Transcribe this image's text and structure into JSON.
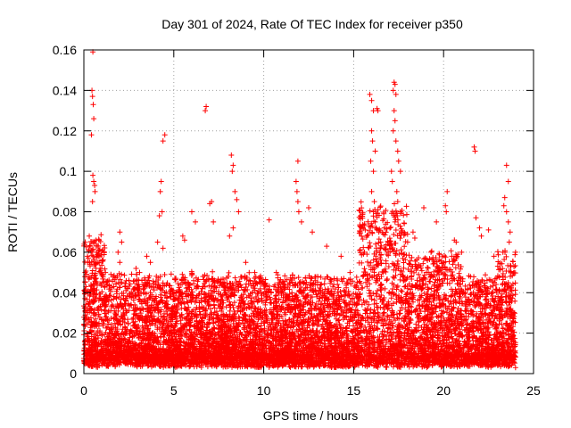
{
  "chart_data": {
    "type": "scatter",
    "title": "Day 301 of 2024, Rate Of TEC Index for receiver p350",
    "xlabel": "GPS time / hours",
    "ylabel": "ROTI / TECUs",
    "xlim": [
      0,
      25
    ],
    "ylim": [
      0,
      0.16
    ],
    "xticks": [
      0,
      5,
      10,
      15,
      20,
      25
    ],
    "xtick_labels": [
      "0",
      "5",
      "10",
      "15",
      "20",
      "25"
    ],
    "yticks": [
      0,
      0.02,
      0.04,
      0.06,
      0.08,
      0.1,
      0.12,
      0.14,
      0.16
    ],
    "ytick_labels": [
      "0",
      "0.02",
      "0.04",
      "0.06",
      "0.08",
      "0.1",
      "0.12",
      "0.14",
      "0.16"
    ],
    "grid": true,
    "marker": "+",
    "color": "#ff0000",
    "series": [
      {
        "name": "ROTI",
        "points": [
          [
            0.5,
            0.159
          ],
          [
            0.45,
            0.14
          ],
          [
            0.48,
            0.137
          ],
          [
            0.52,
            0.133
          ],
          [
            0.55,
            0.126
          ],
          [
            0.42,
            0.118
          ],
          [
            0.5,
            0.098
          ],
          [
            0.55,
            0.095
          ],
          [
            0.6,
            0.093
          ],
          [
            0.62,
            0.09
          ],
          [
            0.48,
            0.085
          ],
          [
            0.3,
            0.068
          ],
          [
            0.35,
            0.063
          ],
          [
            0.4,
            0.06
          ],
          [
            0.2,
            0.055
          ],
          [
            4.5,
            0.118
          ],
          [
            4.4,
            0.115
          ],
          [
            4.3,
            0.095
          ],
          [
            4.25,
            0.09
          ],
          [
            4.35,
            0.08
          ],
          [
            4.2,
            0.078
          ],
          [
            4.1,
            0.065
          ],
          [
            4.4,
            0.062
          ],
          [
            6.8,
            0.132
          ],
          [
            6.75,
            0.13
          ],
          [
            7.1,
            0.085
          ],
          [
            7.0,
            0.084
          ],
          [
            7.2,
            0.075
          ],
          [
            6.0,
            0.08
          ],
          [
            6.2,
            0.075
          ],
          [
            8.2,
            0.108
          ],
          [
            8.3,
            0.103
          ],
          [
            8.25,
            0.1
          ],
          [
            8.4,
            0.09
          ],
          [
            8.5,
            0.086
          ],
          [
            8.6,
            0.08
          ],
          [
            8.3,
            0.072
          ],
          [
            8.1,
            0.068
          ],
          [
            5.5,
            0.068
          ],
          [
            5.6,
            0.066
          ],
          [
            10.3,
            0.076
          ],
          [
            11.9,
            0.105
          ],
          [
            11.8,
            0.095
          ],
          [
            11.85,
            0.09
          ],
          [
            11.9,
            0.085
          ],
          [
            11.95,
            0.08
          ],
          [
            12.1,
            0.075
          ],
          [
            12.5,
            0.082
          ],
          [
            12.7,
            0.07
          ],
          [
            13.5,
            0.063
          ],
          [
            14.3,
            0.058
          ],
          [
            15.9,
            0.138
          ],
          [
            16.0,
            0.135
          ],
          [
            16.1,
            0.13
          ],
          [
            16.3,
            0.131
          ],
          [
            16.35,
            0.13
          ],
          [
            16.0,
            0.12
          ],
          [
            16.05,
            0.115
          ],
          [
            16.2,
            0.11
          ],
          [
            15.95,
            0.105
          ],
          [
            16.1,
            0.1
          ],
          [
            16.0,
            0.09
          ],
          [
            16.15,
            0.085
          ],
          [
            16.1,
            0.08
          ],
          [
            16.2,
            0.075
          ],
          [
            16.4,
            0.07
          ],
          [
            16.5,
            0.065
          ],
          [
            15.6,
            0.06
          ],
          [
            17.25,
            0.144
          ],
          [
            17.3,
            0.143
          ],
          [
            17.2,
            0.14
          ],
          [
            17.35,
            0.138
          ],
          [
            17.25,
            0.13
          ],
          [
            17.3,
            0.125
          ],
          [
            17.2,
            0.12
          ],
          [
            17.35,
            0.115
          ],
          [
            17.45,
            0.11
          ],
          [
            17.5,
            0.105
          ],
          [
            17.1,
            0.1
          ],
          [
            17.6,
            0.1
          ],
          [
            17.15,
            0.095
          ],
          [
            17.4,
            0.09
          ],
          [
            17.45,
            0.085
          ],
          [
            17.6,
            0.08
          ],
          [
            17.3,
            0.075
          ],
          [
            17.7,
            0.07
          ],
          [
            18.9,
            0.082
          ],
          [
            20.2,
            0.09
          ],
          [
            20.1,
            0.083
          ],
          [
            20.15,
            0.08
          ],
          [
            19.6,
            0.075
          ],
          [
            20.6,
            0.066
          ],
          [
            20.7,
            0.065
          ],
          [
            21.7,
            0.112
          ],
          [
            21.75,
            0.11
          ],
          [
            21.8,
            0.077
          ],
          [
            22.0,
            0.072
          ],
          [
            22.1,
            0.068
          ],
          [
            22.5,
            0.071
          ],
          [
            23.5,
            0.103
          ],
          [
            23.6,
            0.095
          ],
          [
            23.4,
            0.087
          ],
          [
            23.35,
            0.083
          ],
          [
            23.5,
            0.08
          ],
          [
            23.6,
            0.075
          ],
          [
            23.7,
            0.07
          ],
          [
            23.65,
            0.065
          ],
          [
            23.3,
            0.06
          ],
          [
            2.0,
            0.07
          ],
          [
            2.1,
            0.065
          ],
          [
            1.9,
            0.06
          ],
          [
            2.0,
            0.055
          ],
          [
            2.9,
            0.052
          ],
          [
            3.1,
            0.05
          ],
          [
            19.3,
            0.06
          ],
          [
            19.1,
            0.056
          ],
          [
            18.3,
            0.07
          ],
          [
            18.4,
            0.067
          ],
          [
            18.0,
            0.065
          ],
          [
            21.0,
            0.06
          ],
          [
            22.8,
            0.058
          ],
          [
            24.0,
            0.06
          ],
          [
            3.5,
            0.058
          ],
          [
            3.7,
            0.055
          ],
          [
            9.0,
            0.055
          ],
          [
            9.5,
            0.05
          ],
          [
            10.7,
            0.05
          ],
          [
            13.0,
            0.048
          ],
          [
            14.8,
            0.05
          ],
          [
            1.2,
            0.05
          ],
          [
            0.8,
            0.058
          ],
          [
            0.9,
            0.052
          ],
          [
            24.0,
            0.003
          ],
          [
            18.7,
            0.006
          ],
          [
            19.4,
            0.0055
          ]
        ]
      }
    ],
    "dense_band": {
      "x_range": [
        0,
        24
      ],
      "description": "dense cluster of ROTI samples",
      "base_low": 0.003,
      "base_high": 0.045,
      "enhanced_windows": [
        {
          "x": [
            0,
            1.2
          ],
          "high": 0.065
        },
        {
          "x": [
            15.3,
            18.0
          ],
          "high": 0.08
        },
        {
          "x": [
            18.0,
            21.0
          ],
          "high": 0.055
        },
        {
          "x": [
            23.0,
            24.0
          ],
          "high": 0.055
        }
      ],
      "sample_count": 9000
    }
  }
}
